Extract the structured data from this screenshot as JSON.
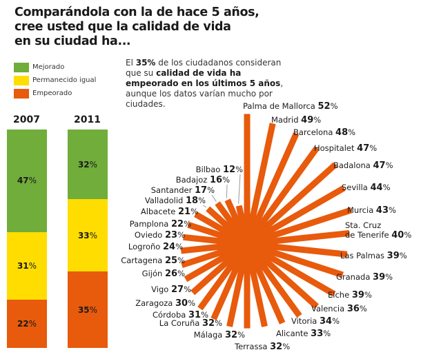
{
  "title": "Comparándola con la de hace 5 años,\ncree usted que la calidad de vida\nen su ciudad ha...",
  "legend": [
    {
      "label": "Mejorado",
      "color": "#70ad3b"
    },
    {
      "label": "Permanecido igual",
      "color": "#ffdd00"
    },
    {
      "label": "Empeorado",
      "color": "#e85a0c"
    }
  ],
  "intro": {
    "p1": "El ",
    "b1": "35%",
    "p2": " de los ciudadanos consideran que su ",
    "b2": "calidad de vida ha empeorado en los últimos 5 años",
    "p3": ", aunque los datos varían mucho por ciudades."
  },
  "chart_data": [
    {
      "type": "bar",
      "stacked": true,
      "categories": [
        "2007",
        "2011"
      ],
      "series": [
        {
          "name": "Mejorado",
          "values": [
            47,
            32
          ]
        },
        {
          "name": "Permanecido igual",
          "values": [
            31,
            33
          ]
        },
        {
          "name": "Empeorado",
          "values": [
            22,
            35
          ]
        }
      ],
      "unit": "%"
    },
    {
      "type": "bar",
      "polar": true,
      "series_name": "Empeorado",
      "unit": "%",
      "categories": [
        "Palma de Mallorca",
        "Madrid",
        "Barcelona",
        "Hospitalet",
        "Badalona",
        "Sevilla",
        "Murcia",
        "Sta. Cruz de Tenerife",
        "Las Palmas",
        "Granada",
        "Elche",
        "Valencia",
        "Vitoria",
        "Alicante",
        "Terrassa",
        "Málaga",
        "La Coruña",
        "Córdoba",
        "Zaragoza",
        "Vigo",
        "Gijón",
        "Cartagena",
        "Logroño",
        "Oviedo",
        "Pamplona",
        "Albacete",
        "Valladolid",
        "Santander",
        "Badajoz",
        "Bilbao"
      ],
      "values": [
        52,
        49,
        48,
        47,
        47,
        44,
        43,
        40,
        39,
        39,
        39,
        36,
        34,
        33,
        32,
        32,
        32,
        31,
        30,
        27,
        26,
        25,
        24,
        23,
        22,
        21,
        18,
        17,
        16,
        12
      ]
    }
  ]
}
